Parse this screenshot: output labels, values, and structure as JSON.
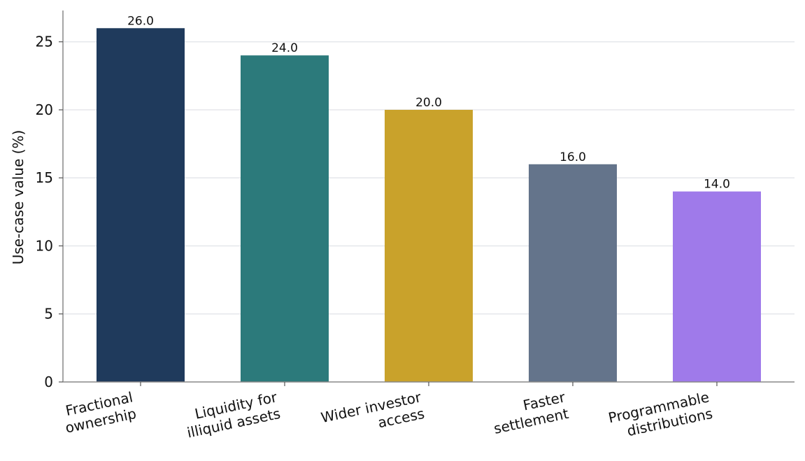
{
  "chart_data": {
    "type": "bar",
    "title": "",
    "xlabel": "",
    "ylabel": "Use-case value (%)",
    "ylim": [
      0,
      27.3
    ],
    "yticks": [
      0,
      5,
      10,
      15,
      20,
      25
    ],
    "grid": "horizontal",
    "categories": [
      [
        "Fractional",
        "ownership"
      ],
      [
        "Liquidity for",
        "illiquid assets"
      ],
      [
        "Wider investor",
        "access"
      ],
      [
        "Faster",
        "settlement"
      ],
      [
        "Programmable",
        "distributions"
      ]
    ],
    "values": [
      26.0,
      24.0,
      20.0,
      16.0,
      14.0
    ],
    "value_labels": [
      "26.0",
      "24.0",
      "20.0",
      "16.0",
      "14.0"
    ],
    "colors": [
      "#1f3a5c",
      "#2c7a7b",
      "#c9a22b",
      "#64748b",
      "#9f7aea"
    ]
  }
}
